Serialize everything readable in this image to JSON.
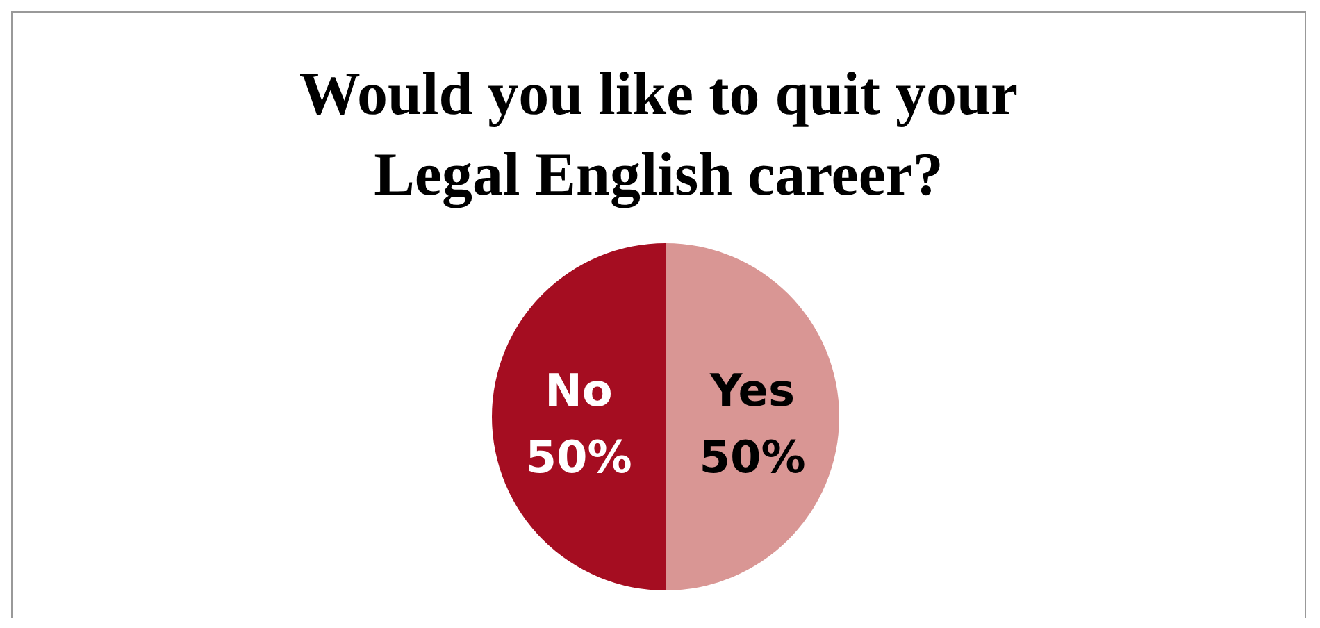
{
  "chart_data": {
    "type": "pie",
    "title": "Would you like to quit your Legal English career?",
    "categories": [
      "No",
      "Yes"
    ],
    "values": [
      50,
      50
    ],
    "colors": [
      "#a50d21",
      "#d99694"
    ],
    "value_labels": [
      "50%",
      "50%"
    ]
  }
}
